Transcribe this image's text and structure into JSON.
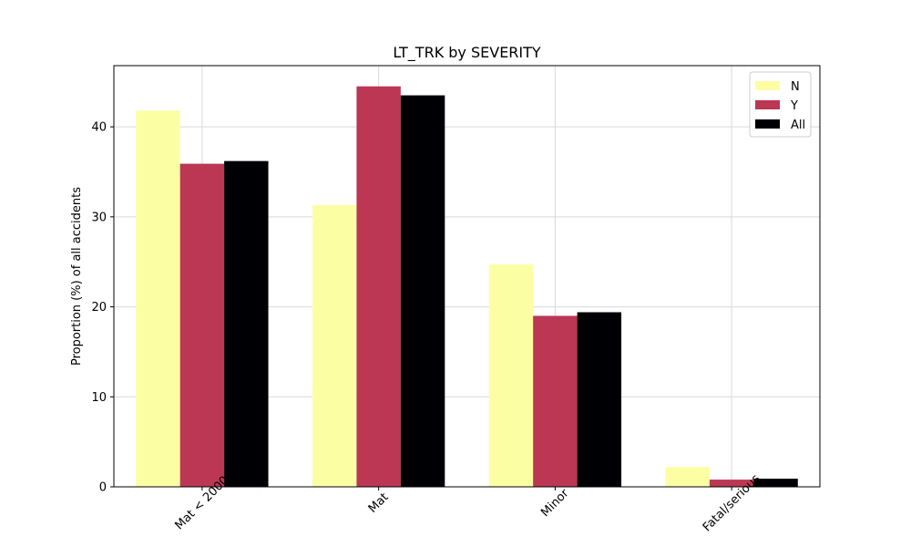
{
  "chart_data": {
    "type": "bar",
    "title": "LT_TRK by SEVERITY",
    "xlabel": "",
    "ylabel": "Proportion (%) of all accidents",
    "categories": [
      "Mat < 2000",
      "Mat",
      "Minor",
      "Fatal/serious"
    ],
    "series": [
      {
        "name": "N",
        "color": "#fcfea4",
        "values": [
          41.8,
          31.3,
          24.7,
          2.2
        ]
      },
      {
        "name": "Y",
        "color": "#bb3754",
        "values": [
          35.9,
          44.5,
          19.0,
          0.8
        ]
      },
      {
        "name": "All",
        "color": "#000004",
        "values": [
          36.2,
          43.5,
          19.4,
          0.9
        ]
      }
    ],
    "ylim": [
      0,
      46.8
    ],
    "yticks": [
      0,
      10,
      20,
      30,
      40
    ],
    "grid": true,
    "legend_position": "top-right",
    "x_tick_rotation": 45
  }
}
